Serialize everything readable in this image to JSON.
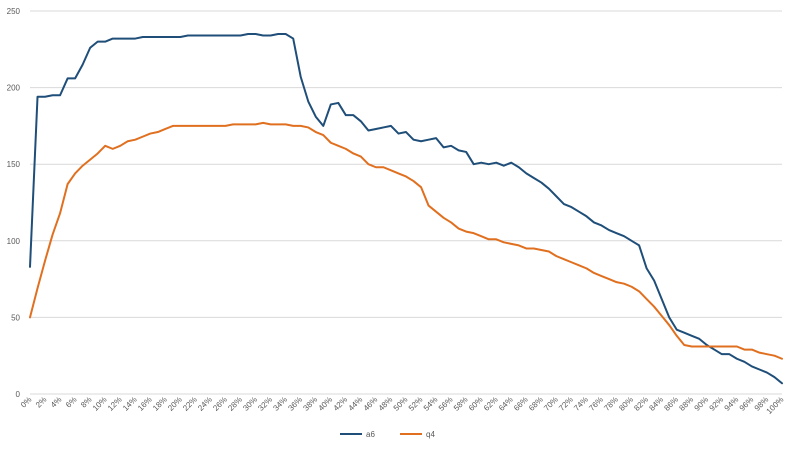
{
  "chart_data": {
    "type": "line",
    "title": "",
    "xlabel": "",
    "ylabel": "",
    "ylim": [
      0,
      250
    ],
    "yticks": [
      0,
      50,
      100,
      150,
      200,
      250
    ],
    "grid": true,
    "legend_position": "bottom",
    "x": [
      "0%",
      "1%",
      "2%",
      "3%",
      "4%",
      "5%",
      "6%",
      "7%",
      "8%",
      "9%",
      "10%",
      "11%",
      "12%",
      "13%",
      "14%",
      "15%",
      "16%",
      "17%",
      "18%",
      "19%",
      "20%",
      "21%",
      "22%",
      "23%",
      "24%",
      "25%",
      "26%",
      "27%",
      "28%",
      "29%",
      "30%",
      "31%",
      "32%",
      "33%",
      "34%",
      "35%",
      "36%",
      "37%",
      "38%",
      "39%",
      "40%",
      "41%",
      "42%",
      "43%",
      "44%",
      "45%",
      "46%",
      "47%",
      "48%",
      "49%",
      "50%",
      "51%",
      "52%",
      "53%",
      "54%",
      "55%",
      "56%",
      "57%",
      "58%",
      "59%",
      "60%",
      "61%",
      "62%",
      "63%",
      "64%",
      "65%",
      "66%",
      "67%",
      "68%",
      "69%",
      "70%",
      "71%",
      "72%",
      "73%",
      "74%",
      "75%",
      "76%",
      "77%",
      "78%",
      "79%",
      "80%",
      "81%",
      "82%",
      "83%",
      "84%",
      "85%",
      "86%",
      "87%",
      "88%",
      "89%",
      "90%",
      "91%",
      "92%",
      "93%",
      "94%",
      "95%",
      "96%",
      "97%",
      "98%",
      "99%",
      "100%"
    ],
    "xtick_labels": [
      "0%",
      "2%",
      "4%",
      "6%",
      "8%",
      "10%",
      "12%",
      "14%",
      "16%",
      "18%",
      "20%",
      "22%",
      "24%",
      "26%",
      "28%",
      "30%",
      "32%",
      "34%",
      "36%",
      "38%",
      "40%",
      "42%",
      "44%",
      "46%",
      "48%",
      "50%",
      "52%",
      "54%",
      "56%",
      "58%",
      "60%",
      "62%",
      "64%",
      "66%",
      "68%",
      "70%",
      "72%",
      "74%",
      "76%",
      "78%",
      "80%",
      "82%",
      "84%",
      "86%",
      "88%",
      "90%",
      "92%",
      "94%",
      "96%",
      "98%",
      "100%"
    ],
    "series": [
      {
        "name": "a6",
        "color": "#1f4e79",
        "values": [
          83,
          194,
          194,
          195,
          195,
          206,
          206,
          215,
          226,
          230,
          230,
          232,
          232,
          232,
          232,
          233,
          233,
          233,
          233,
          233,
          233,
          234,
          234,
          234,
          234,
          234,
          234,
          234,
          234,
          235,
          235,
          234,
          234,
          235,
          235,
          232,
          207,
          191,
          181,
          175,
          189,
          190,
          182,
          182,
          178,
          172,
          173,
          174,
          175,
          170,
          171,
          166,
          165,
          166,
          167,
          161,
          162,
          159,
          158,
          150,
          151,
          150,
          151,
          149,
          151,
          148,
          144,
          141,
          138,
          134,
          129,
          124,
          122,
          119,
          116,
          112,
          110,
          107,
          105,
          103,
          100,
          97,
          82,
          74,
          62,
          50,
          42,
          40,
          38,
          36,
          32,
          29,
          26,
          26,
          23,
          21,
          18,
          16,
          14,
          11,
          7
        ]
      },
      {
        "name": "q4",
        "color": "#e07020",
        "values": [
          50,
          69,
          87,
          104,
          118,
          137,
          144,
          149,
          153,
          157,
          162,
          160,
          162,
          165,
          166,
          168,
          170,
          171,
          173,
          175,
          175,
          175,
          175,
          175,
          175,
          175,
          175,
          176,
          176,
          176,
          176,
          177,
          176,
          176,
          176,
          175,
          175,
          174,
          171,
          169,
          164,
          162,
          160,
          157,
          155,
          150,
          148,
          148,
          146,
          144,
          142,
          139,
          135,
          123,
          119,
          115,
          112,
          108,
          106,
          105,
          103,
          101,
          101,
          99,
          98,
          97,
          95,
          95,
          94,
          93,
          90,
          88,
          86,
          84,
          82,
          79,
          77,
          75,
          73,
          72,
          70,
          67,
          62,
          57,
          51,
          45,
          38,
          32,
          31,
          31,
          31,
          31,
          31,
          31,
          31,
          29,
          29,
          27,
          26,
          25,
          23
        ]
      }
    ]
  }
}
